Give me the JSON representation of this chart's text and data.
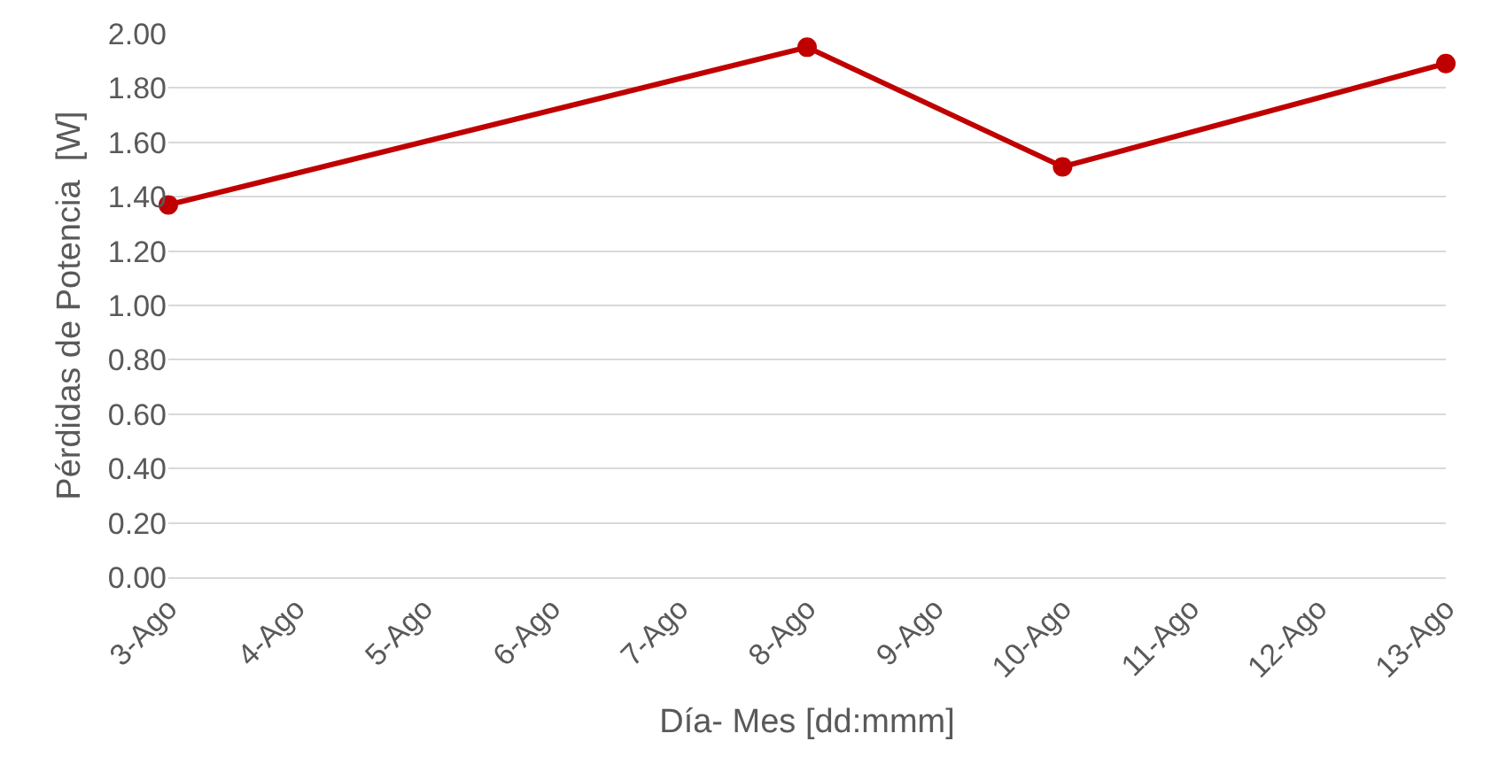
{
  "chart_data": {
    "type": "line",
    "xlabel": "Día- Mes [dd:mmm]",
    "ylabel": "Pérdidas de Potencia  [W]",
    "x": [
      "--08-03",
      "--08-08",
      "--08-10",
      "--08-13"
    ],
    "series": [
      {
        "color": "#c00000",
        "values": [
          1.37,
          1.95,
          1.51,
          1.89
        ]
      }
    ],
    "xlim": [
      "--08-03",
      "--08-13"
    ],
    "xticks": [
      {
        "value": "--08-03",
        "label": "3-Ago"
      },
      {
        "value": "--08-04",
        "label": "4-Ago"
      },
      {
        "value": "--08-05",
        "label": "5-Ago"
      },
      {
        "value": "--08-06",
        "label": "6-Ago"
      },
      {
        "value": "--08-07",
        "label": "7-Ago"
      },
      {
        "value": "--08-08",
        "label": "8-Ago"
      },
      {
        "value": "--08-09",
        "label": "9-Ago"
      },
      {
        "value": "--08-10",
        "label": "10-Ago"
      },
      {
        "value": "--08-11",
        "label": "11-Ago"
      },
      {
        "value": "--08-12",
        "label": "12-Ago"
      },
      {
        "value": "--08-13",
        "label": "13-Ago"
      }
    ],
    "ylim": [
      0,
      2
    ],
    "yticks": [
      {
        "value": 0,
        "label": "0.00"
      },
      {
        "value": 0.2,
        "label": "0.20"
      },
      {
        "value": 0.4,
        "label": "0.40"
      },
      {
        "value": 0.6,
        "label": "0.60"
      },
      {
        "value": 0.8,
        "label": "0.80"
      },
      {
        "value": 1,
        "label": "1.00"
      },
      {
        "value": 1.2,
        "label": "1.20"
      },
      {
        "value": 1.4,
        "label": "1.40"
      },
      {
        "value": 1.6,
        "label": "1.60"
      },
      {
        "value": 1.8,
        "label": "1.80"
      },
      {
        "value": 2,
        "label": "2.00"
      }
    ],
    "grid": "y",
    "marker": "circle",
    "line_style": "solid"
  }
}
